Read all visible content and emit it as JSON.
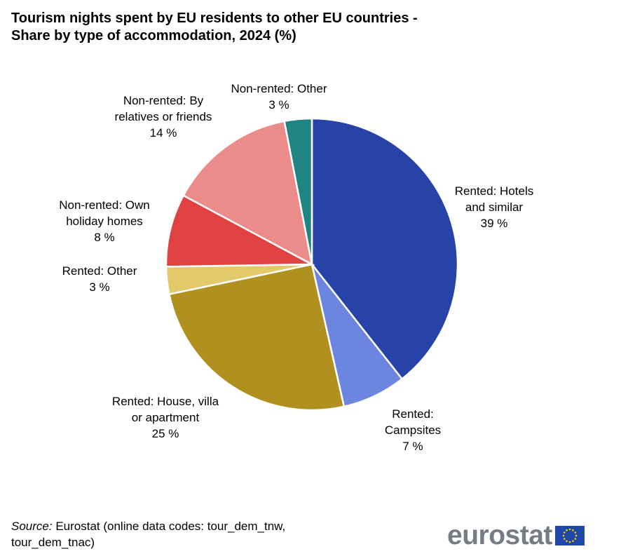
{
  "chart_data": {
    "type": "pie",
    "title": "Tourism nights spent by EU residents to other EU countries - Share by type of accommodation, 2024 (%)",
    "title_lines": [
      "Tourism nights spent by EU residents to other EU countries -",
      "Share by type of accommodation, 2024 (%)"
    ],
    "start": "top",
    "direction": "clockwise",
    "slices": [
      {
        "name": "Rented: Hotels and similar",
        "value": 39,
        "label": "39 %",
        "color": "#2843a8"
      },
      {
        "name": "Rented: Campsites",
        "value": 7,
        "label": "7 %",
        "color": "#6c86e0"
      },
      {
        "name": "Rented: House, villa or apartment",
        "value": 25,
        "label": "25 %",
        "color": "#b09120"
      },
      {
        "name": "Rented: Other",
        "value": 3,
        "label": "3 %",
        "color": "#e2c96a"
      },
      {
        "name": "Non-rented: Own holiday homes",
        "value": 8,
        "label": "8 %",
        "color": "#e04242"
      },
      {
        "name": "Non-rented: By relatives or friends",
        "value": 14,
        "label": "14 %",
        "color": "#ec8c8a"
      },
      {
        "name": "Non-rented: Other",
        "value": 3,
        "label": "3 %",
        "color": "#218484"
      }
    ]
  },
  "source": {
    "label": "Source:",
    "text": " Eurostat (online data codes: tour_dem_tnw, tour_dem_tnac)"
  },
  "logo": {
    "text": "eurostat",
    "flag_color": "#1f47a8",
    "star_color": "#f5d000"
  }
}
